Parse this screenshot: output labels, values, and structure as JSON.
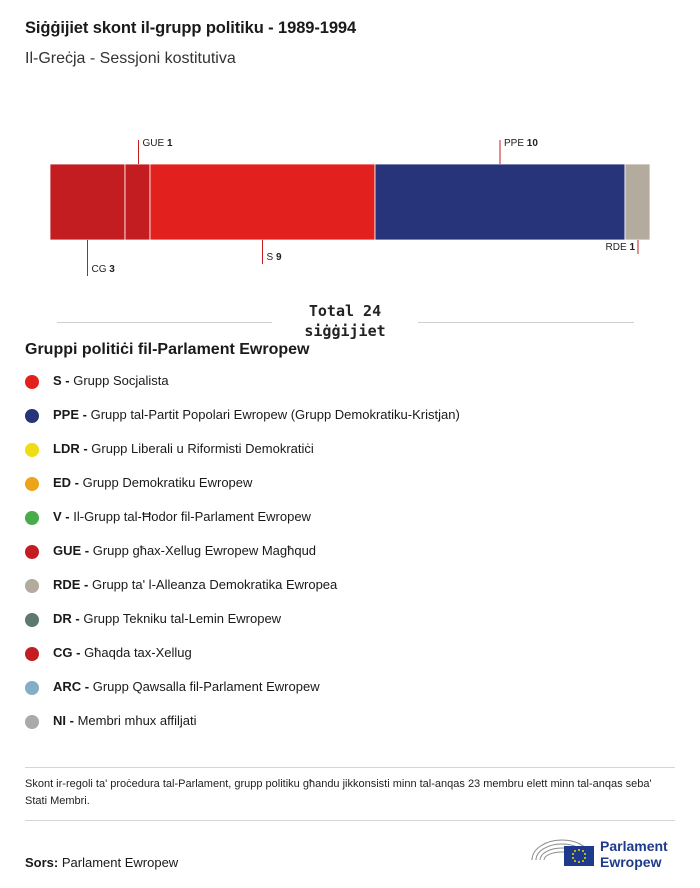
{
  "header": {
    "title": "Siġġijiet skont il-grupp politiku - 1989-1994",
    "subtitle": "Il-Greċja - Sessjoni kostitutiva"
  },
  "chart_data": {
    "type": "bar",
    "orientation": "horizontal-stacked",
    "categories": [
      "CG",
      "GUE",
      "S",
      "PPE",
      "RDE"
    ],
    "values": [
      3,
      1,
      9,
      10,
      1
    ],
    "colors": [
      "#c41d21",
      "#c41d21",
      "#e2211e",
      "#283479",
      "#b3ab9d"
    ],
    "label_positions": [
      "below",
      "above",
      "below",
      "above",
      "below"
    ],
    "total": 24,
    "total_label": "Total 24 siġġijiet"
  },
  "legend": {
    "title": "Gruppi politiċi fil-Parlament Ewropew",
    "items": [
      {
        "code": "S -",
        "text": "Grupp Socjalista",
        "color": "#e2211e"
      },
      {
        "code": "PPE -",
        "text": "Grupp tal-Partit Popolari Ewropew (Grupp Demokratiku-Kristjan)",
        "color": "#283479"
      },
      {
        "code": "LDR -",
        "text": "Grupp Liberali u Riformisti Demokratiċi",
        "color": "#f0dc12"
      },
      {
        "code": "ED -",
        "text": "Grupp Demokratiku Ewropew",
        "color": "#eba51a"
      },
      {
        "code": "V -",
        "text": "Il-Grupp tal-Ħodor fil-Parlament Ewropew",
        "color": "#4aab4b"
      },
      {
        "code": "GUE -",
        "text": "Grupp għax-Xellug Ewropew Magħqud",
        "color": "#c41d21"
      },
      {
        "code": "RDE -",
        "text": "Grupp ta' l-Alleanza Demokratika Ewropea",
        "color": "#b3ab9d"
      },
      {
        "code": "DR -",
        "text": "Grupp Tekniku tal-Lemin Ewropew",
        "color": "#5e7a70"
      },
      {
        "code": "CG -",
        "text": "Għaqda tax-Xellug",
        "color": "#c41d21"
      },
      {
        "code": "ARC -",
        "text": "Grupp Qawsalla fil-Parlament Ewropew",
        "color": "#84aec6"
      },
      {
        "code": "NI -",
        "text": "Membri mhux affiljati",
        "color": "#aaaaaa"
      }
    ]
  },
  "note": "Skont ir-regoli ta' proċedura tal-Parlament, grupp politiku għandu jikkonsisti minn tal-anqas 23 membru elett minn tal-anqas seba' Stati Membri.",
  "source": {
    "label": "Sors:",
    "text": "Parlament Ewropew"
  },
  "logo": {
    "text": "Parlament\nEwropew"
  }
}
